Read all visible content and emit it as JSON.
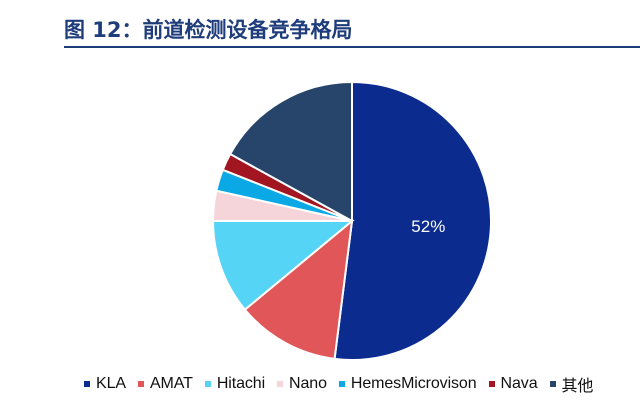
{
  "page": {
    "title": "图 12：前道检测设备竞争格局"
  },
  "chart_data": {
    "type": "pie",
    "title": "",
    "series": [
      {
        "name": "KLA",
        "value": 52,
        "color": "#0b2c8e",
        "label": "52%"
      },
      {
        "name": "AMAT",
        "value": 12,
        "color": "#e15759",
        "label": ""
      },
      {
        "name": "Hitachi",
        "value": 11,
        "color": "#55d4f5",
        "label": ""
      },
      {
        "name": "Nano",
        "value": 3.5,
        "color": "#f6d5da",
        "label": ""
      },
      {
        "name": "HemesMicrovison",
        "value": 2.5,
        "color": "#0aa9e6",
        "label": ""
      },
      {
        "name": "Nava",
        "value": 2,
        "color": "#a11621",
        "label": ""
      },
      {
        "name": "其他",
        "value": 17,
        "color": "#27456b",
        "label": ""
      }
    ],
    "legend_position": "bottom",
    "start_angle": "12 o'clock",
    "direction": "clockwise"
  }
}
